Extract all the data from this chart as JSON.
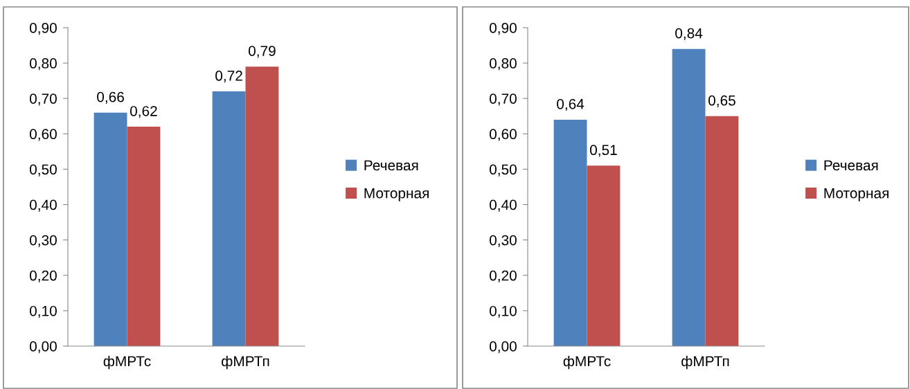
{
  "chart_data": [
    {
      "type": "bar",
      "categories": [
        "фМРТс",
        "фМРТп"
      ],
      "series": [
        {
          "name": "Речевая",
          "color": "#4f81bd",
          "values": [
            0.66,
            0.72
          ],
          "value_labels": [
            "0,66",
            "0,72"
          ]
        },
        {
          "name": "Моторная",
          "color": "#c0504d",
          "values": [
            0.62,
            0.79
          ],
          "value_labels": [
            "0,62",
            "0,79"
          ]
        }
      ],
      "ylim": [
        0,
        0.9
      ],
      "yticks": [
        {
          "value": 0,
          "label": "0,00"
        },
        {
          "value": 0.1,
          "label": "0,10"
        },
        {
          "value": 0.2,
          "label": "0,20"
        },
        {
          "value": 0.3,
          "label": "0,30"
        },
        {
          "value": 0.4,
          "label": "0,40"
        },
        {
          "value": 0.5,
          "label": "0,50"
        },
        {
          "value": 0.6,
          "label": "0,60"
        },
        {
          "value": 0.7,
          "label": "0,70"
        },
        {
          "value": 0.8,
          "label": "0,80"
        },
        {
          "value": 0.9,
          "label": "0,90"
        }
      ],
      "grid": false,
      "legend": "right"
    },
    {
      "type": "bar",
      "categories": [
        "фМРТс",
        "фМРТп"
      ],
      "series": [
        {
          "name": "Речевая",
          "color": "#4f81bd",
          "values": [
            0.64,
            0.84
          ],
          "value_labels": [
            "0,64",
            "0,84"
          ]
        },
        {
          "name": "Моторная",
          "color": "#c0504d",
          "values": [
            0.51,
            0.65
          ],
          "value_labels": [
            "0,51",
            "0,65"
          ]
        }
      ],
      "ylim": [
        0,
        0.9
      ],
      "yticks": [
        {
          "value": 0,
          "label": "0,00"
        },
        {
          "value": 0.1,
          "label": "0,10"
        },
        {
          "value": 0.2,
          "label": "0,20"
        },
        {
          "value": 0.3,
          "label": "0,30"
        },
        {
          "value": 0.4,
          "label": "0,40"
        },
        {
          "value": 0.5,
          "label": "0,50"
        },
        {
          "value": 0.6,
          "label": "0,60"
        },
        {
          "value": 0.7,
          "label": "0,70"
        },
        {
          "value": 0.8,
          "label": "0,80"
        },
        {
          "value": 0.9,
          "label": "0,90"
        }
      ],
      "grid": false,
      "legend": "right"
    }
  ]
}
